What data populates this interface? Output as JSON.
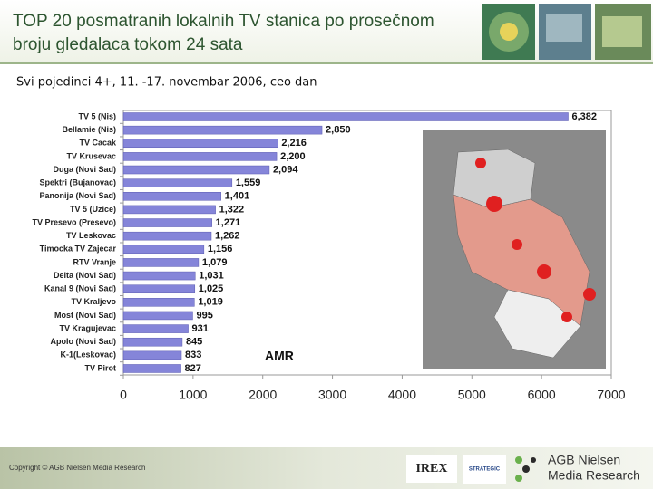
{
  "chart_data": {
    "type": "bar",
    "orientation": "horizontal",
    "title": "TOP 20 posmatranih lokalnih TV stanica po prosečnom broju gledalaca tokom 24 sata",
    "subtitle": "Svi pojedinci 4+, 11. -17. novembar 2006, ceo dan",
    "x_label": "AMR",
    "categories": [
      "TV 5 (Nis)",
      "Bellamie (Nis)",
      "TV Cacak",
      "TV Krusevac",
      "Duga (Novi Sad)",
      "Spektri (Bujanovac)",
      "Panonija (Novi Sad)",
      "TV 5 (Uzice)",
      "TV Presevo (Presevo)",
      "TV Leskovac",
      "Timocka TV Zajecar",
      "RTV Vranje",
      "Delta (Novi Sad)",
      "Kanal 9 (Novi Sad)",
      "TV Kraljevo",
      "Most (Novi Sad)",
      "TV Kragujevac",
      "Apolo (Novi Sad)",
      "K-1(Leskovac)",
      "TV Pirot"
    ],
    "values": [
      6382,
      2850,
      2216,
      2200,
      2094,
      1559,
      1401,
      1322,
      1271,
      1262,
      1156,
      1079,
      1031,
      1025,
      1019,
      995,
      931,
      845,
      833,
      827
    ],
    "value_labels": [
      "6,382",
      "2,850",
      "2,216",
      "2,200",
      "2,094",
      "1,559",
      "1,401",
      "1,322",
      "1,271",
      "1,262",
      "1,156",
      "1,079",
      "1,031",
      "1,025",
      "1,019",
      "995",
      "931",
      "845",
      "833",
      "827"
    ],
    "color": "#8585d9",
    "xlim": [
      0,
      7000
    ],
    "xticks": [
      0,
      1000,
      2000,
      3000,
      4000,
      5000,
      6000,
      7000
    ]
  },
  "footer": {
    "copyright": "Copyright © AGB Nielsen Media Research",
    "logos": [
      "IREX",
      "STRATEGIC",
      "AGB Nielsen",
      "Media Research"
    ]
  }
}
